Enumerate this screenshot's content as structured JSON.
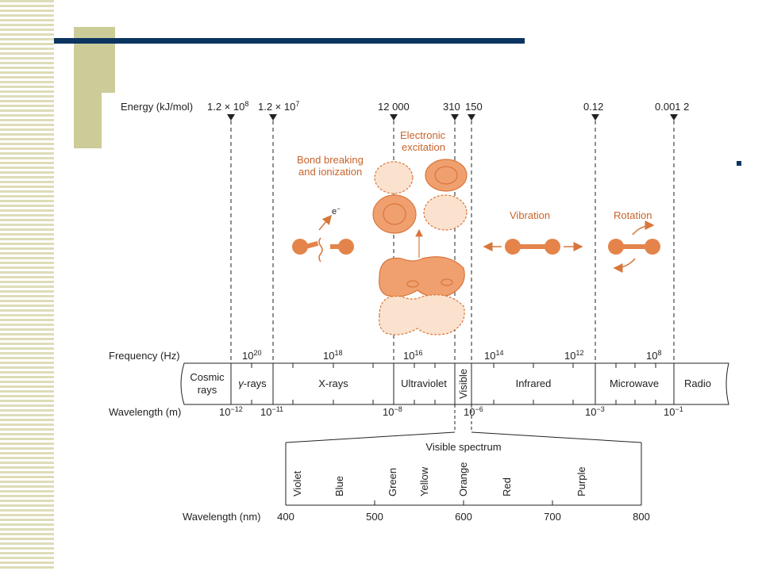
{
  "slide": {
    "accent_color": "#0a3560",
    "decor_color": "#cccc99"
  },
  "diagram": {
    "energy": {
      "label": "Energy (kJ/mol)",
      "values": [
        {
          "id": "e1",
          "mant": "1.2 × 10",
          "exp": "8"
        },
        {
          "id": "e2",
          "mant": "1.2 × 10",
          "exp": "7"
        },
        {
          "id": "e3",
          "text": "12 000"
        },
        {
          "id": "e4",
          "text": "310"
        },
        {
          "id": "e5",
          "text": "150"
        },
        {
          "id": "e6",
          "text": "0.12"
        },
        {
          "id": "e7",
          "text": "0.001 2"
        }
      ]
    },
    "processes": {
      "bond_line1": "Bond breaking",
      "bond_line2": "and ionization",
      "electron": "e",
      "electron_sup": "−",
      "elec_line1": "Electronic",
      "elec_line2": "excitation",
      "vibration": "Vibration",
      "rotation": "Rotation"
    },
    "frequency": {
      "label": "Frequency (Hz)",
      "ticks": [
        {
          "id": "f1",
          "base": "10",
          "exp": "20"
        },
        {
          "id": "f2",
          "base": "10",
          "exp": "18"
        },
        {
          "id": "f3",
          "base": "10",
          "exp": "16"
        },
        {
          "id": "f4",
          "base": "10",
          "exp": "14"
        },
        {
          "id": "f5",
          "base": "10",
          "exp": "12"
        },
        {
          "id": "f6",
          "base": "10",
          "exp": "8"
        }
      ]
    },
    "regions": {
      "cosmic1": "Cosmic",
      "cosmic2": "rays",
      "gamma_sym": "γ",
      "gamma": "-rays",
      "xrays": "X-rays",
      "uv": "Ultraviolet",
      "visible": "Visible",
      "ir": "Infrared",
      "microwave": "Microwave",
      "radio": "Radio"
    },
    "wavelength_m": {
      "label": "Wavelength (m)",
      "ticks": [
        {
          "id": "w1",
          "base": "10",
          "exp": "−12"
        },
        {
          "id": "w2",
          "base": "10",
          "exp": "−11"
        },
        {
          "id": "w3",
          "base": "10",
          "exp": "−8"
        },
        {
          "id": "w4",
          "base": "10",
          "exp": "−6"
        },
        {
          "id": "w5",
          "base": "10",
          "exp": "−3"
        },
        {
          "id": "w6",
          "base": "10",
          "exp": "−1"
        }
      ]
    },
    "visible_spectrum": {
      "title": "Visible spectrum",
      "colors": [
        "Violet",
        "Blue",
        "Green",
        "Yellow",
        "Orange",
        "Red",
        "Purple"
      ],
      "nm_label": "Wavelength (nm)",
      "nm_ticks": [
        "400",
        "500",
        "600",
        "700",
        "800"
      ]
    }
  }
}
